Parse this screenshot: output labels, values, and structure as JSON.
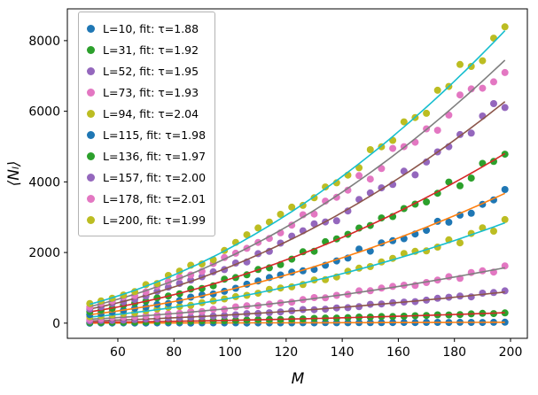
{
  "chart_data": {
    "type": "scatter",
    "title": "",
    "xlabel": "M",
    "ylabel": "⟨Nₗ⟩",
    "xlim": [
      42,
      206
    ],
    "ylim": [
      -430,
      8900
    ],
    "x_ticks": [
      60,
      80,
      100,
      120,
      140,
      160,
      180,
      200
    ],
    "y_ticks": [
      0,
      2000,
      4000,
      6000,
      8000
    ],
    "x_start": 50,
    "x_end": 198,
    "x_step": 4,
    "grid": false,
    "legend_position": "upper left",
    "noise_frac": 0.05,
    "fit_model": "y = A * M^tau, A = y_at_M200 / 200^tau",
    "series": [
      {
        "label": "L=10, fit: τ=1.88",
        "L": 10,
        "tau": 1.88,
        "y_at_M200": 25,
        "marker_color": "#1f77b4",
        "line_color": "#ff7f0e"
      },
      {
        "label": "L=31, fit: τ=1.92",
        "L": 31,
        "tau": 1.92,
        "y_at_M200": 300,
        "marker_color": "#2ca02c",
        "line_color": "#d62728"
      },
      {
        "label": "L=52, fit: τ=1.95",
        "L": 52,
        "tau": 1.95,
        "y_at_M200": 900,
        "marker_color": "#9467bd",
        "line_color": "#8c564b"
      },
      {
        "label": "L=73, fit: τ=1.93",
        "L": 73,
        "tau": 1.93,
        "y_at_M200": 1600,
        "marker_color": "#e377c2",
        "line_color": "#7f7f7f"
      },
      {
        "label": "L=94, fit: τ=2.04",
        "L": 94,
        "tau": 2.04,
        "y_at_M200": 2900,
        "marker_color": "#bcbd22",
        "line_color": "#17becf"
      },
      {
        "label": "L=115, fit: τ=1.98",
        "L": 115,
        "tau": 1.98,
        "y_at_M200": 3750,
        "marker_color": "#1f77b4",
        "line_color": "#ff7f0e"
      },
      {
        "label": "L=136, fit: τ=1.97",
        "L": 136,
        "tau": 1.97,
        "y_at_M200": 4900,
        "marker_color": "#2ca02c",
        "line_color": "#d62728"
      },
      {
        "label": "L=157, fit: τ=2.00",
        "L": 157,
        "tau": 2.0,
        "y_at_M200": 6400,
        "marker_color": "#9467bd",
        "line_color": "#8c564b"
      },
      {
        "label": "L=178, fit: τ=2.01",
        "L": 178,
        "tau": 2.01,
        "y_at_M200": 7600,
        "marker_color": "#e377c2",
        "line_color": "#7f7f7f"
      },
      {
        "label": "L=200, fit: τ=1.99",
        "L": 200,
        "tau": 1.99,
        "y_at_M200": 8450,
        "marker_color": "#bcbd22",
        "line_color": "#17becf"
      }
    ]
  }
}
